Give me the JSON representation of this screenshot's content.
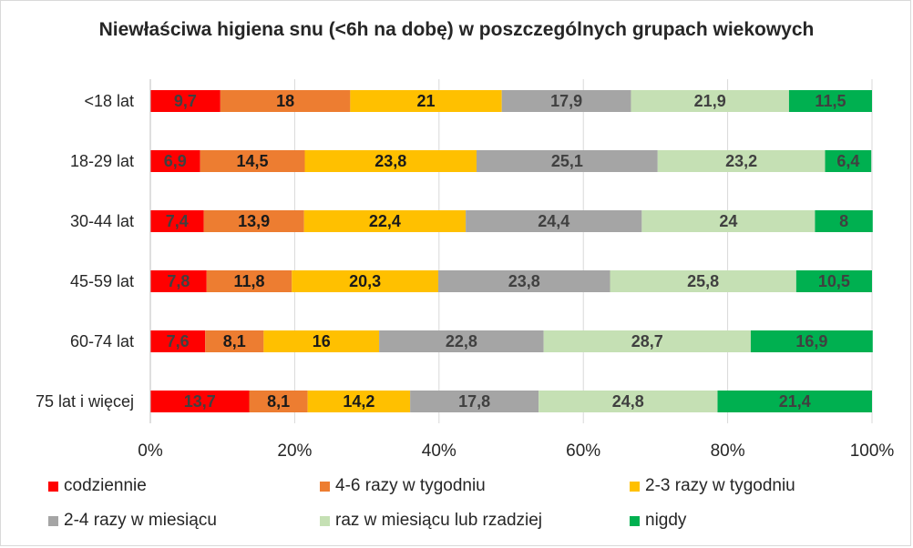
{
  "chart_data": {
    "type": "bar",
    "orientation": "horizontal",
    "stacked": true,
    "percent_axis": true,
    "title": "Niewłaściwa higiena snu (<6h na dobę) w poszczególnych grupach wiekowych",
    "categories": [
      "<18 lat",
      "18-29 lat",
      "30-44 lat",
      "45-59 lat",
      "60-74 lat",
      "75 lat i więcej"
    ],
    "xticks": [
      "0%",
      "20%",
      "40%",
      "60%",
      "80%",
      "100%"
    ],
    "xlim": [
      0,
      100
    ],
    "grid": true,
    "legend_position": "bottom",
    "series": [
      {
        "name": "codziennie",
        "color": "#ff0000",
        "label_color": "#404040",
        "values": [
          9.7,
          6.9,
          7.4,
          7.8,
          7.6,
          13.7
        ],
        "labels": [
          "9,7",
          "6,9",
          "7,4",
          "7,8",
          "7,6",
          "13,7"
        ]
      },
      {
        "name": "4-6 razy w tygodniu",
        "color": "#ed7d31",
        "label_color": "#1a1a1a",
        "values": [
          18,
          14.5,
          13.9,
          11.8,
          8.1,
          8.1
        ],
        "labels": [
          "18",
          "14,5",
          "13,9",
          "11,8",
          "8,1",
          "8,1"
        ]
      },
      {
        "name": "2-3 razy w tygodniu",
        "color": "#ffc000",
        "label_color": "#1a1a1a",
        "values": [
          21,
          23.8,
          22.4,
          20.3,
          16,
          14.2
        ],
        "labels": [
          "21",
          "23,8",
          "22,4",
          "20,3",
          "16",
          "14,2"
        ]
      },
      {
        "name": "2-4 razy w miesiącu",
        "color": "#a5a5a5",
        "label_color": "#404040",
        "values": [
          17.9,
          25.1,
          24.4,
          23.8,
          22.8,
          17.8
        ],
        "labels": [
          "17,9",
          "25,1",
          "24,4",
          "23,8",
          "22,8",
          "17,8"
        ]
      },
      {
        "name": "raz w miesiącu lub rzadziej",
        "color": "#c5e0b4",
        "label_color": "#404040",
        "values": [
          21.9,
          23.2,
          24,
          25.8,
          28.7,
          24.8
        ],
        "labels": [
          "21,9",
          "23,2",
          "24",
          "25,8",
          "28,7",
          "24,8"
        ]
      },
      {
        "name": "nigdy",
        "color": "#00b050",
        "label_color": "#404040",
        "values": [
          11.5,
          6.4,
          8,
          10.5,
          16.9,
          21.4
        ],
        "labels": [
          "11,5",
          "6,4",
          "8",
          "10,5",
          "16,9",
          "21,4"
        ]
      }
    ]
  },
  "colors": {
    "text": "#262626",
    "gridline": "#d9d9d9",
    "axis": "#bfbfbf"
  }
}
